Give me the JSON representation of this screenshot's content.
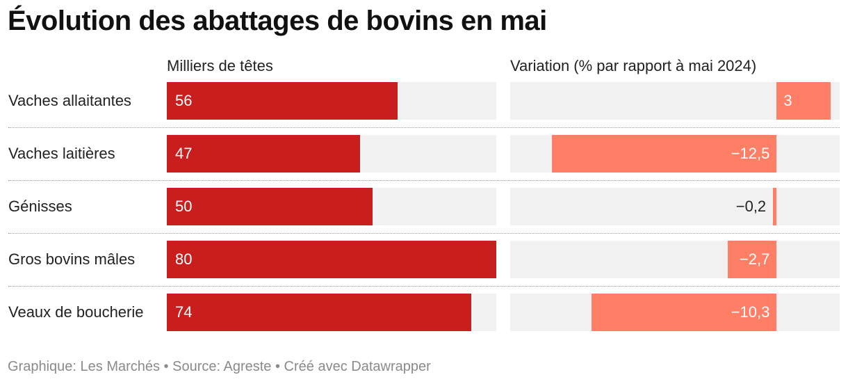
{
  "chart_data": {
    "type": "bar",
    "title": "Évolution des abattages de bovins en mai",
    "footer": "Graphique: Les Marchés • Source: Agreste • Créé avec Datawrapper",
    "categories": [
      "Vaches allaitantes",
      "Vaches laitières",
      "Génisses",
      "Gros bovins mâles",
      "Veaux de boucherie"
    ],
    "series": [
      {
        "name": "Milliers de têtes",
        "values": [
          56,
          47,
          50,
          80,
          74
        ],
        "labels": [
          "56",
          "47",
          "50",
          "80",
          "74"
        ],
        "range": [
          0,
          80
        ]
      },
      {
        "name": "Variation (% par rapport à mai 2024)",
        "values": [
          3,
          -12.5,
          -0.2,
          -2.7,
          -10.3
        ],
        "labels": [
          "3",
          "−12,5",
          "−0,2",
          "−2,7",
          "−10,3"
        ],
        "range": [
          -14.8,
          3.5
        ]
      }
    ],
    "colors": {
      "bar_primary": "#c81e1e",
      "bar_variation": "#ff7f66",
      "track": "#f1f1f1"
    }
  }
}
